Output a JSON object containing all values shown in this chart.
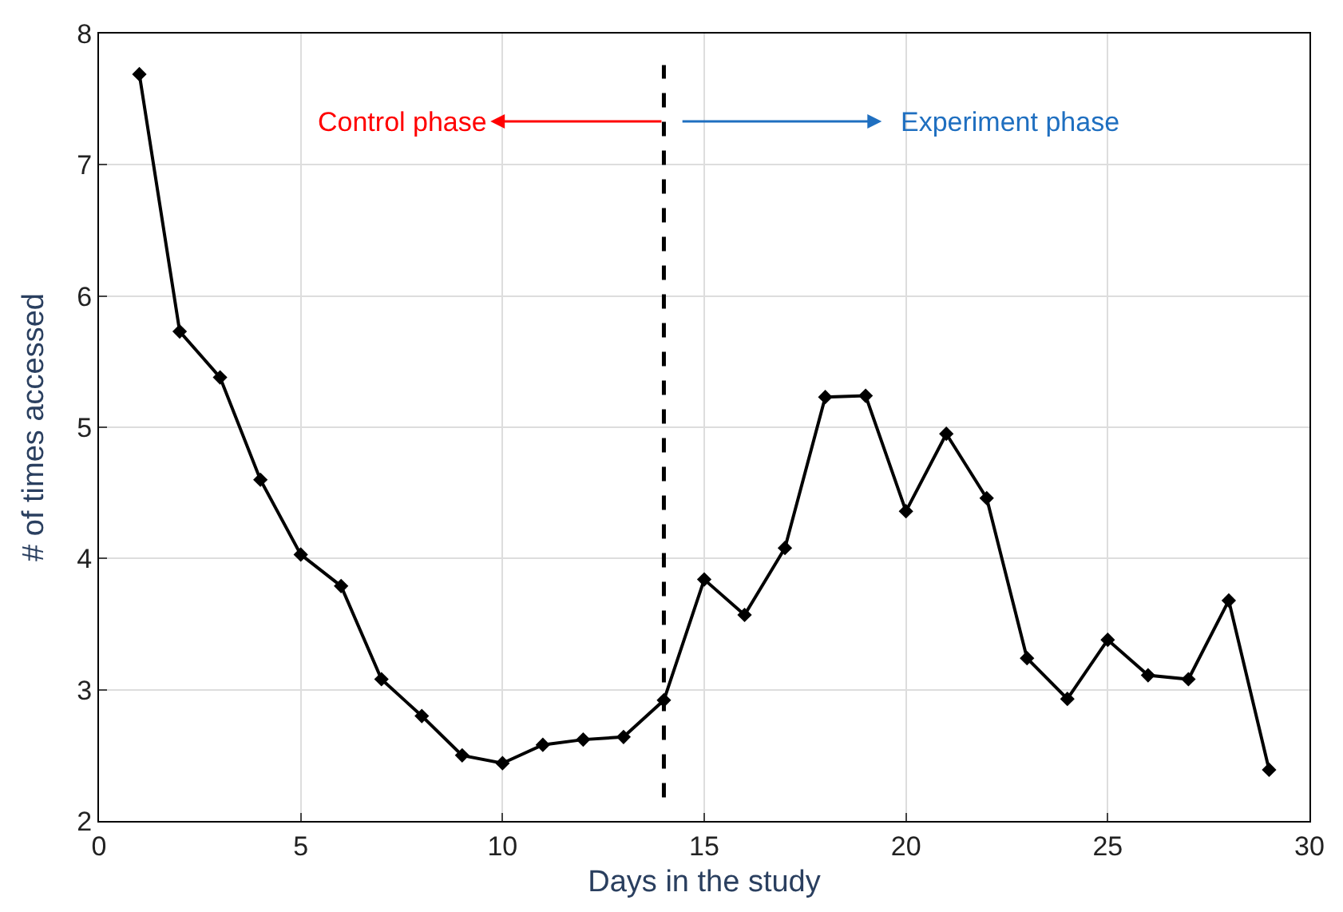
{
  "chart_data": {
    "type": "line",
    "xlabel": "Days in the study",
    "ylabel": "# of times accessed",
    "x": [
      1,
      2,
      3,
      4,
      5,
      6,
      7,
      8,
      9,
      10,
      11,
      12,
      13,
      14,
      15,
      16,
      17,
      18,
      19,
      20,
      21,
      22,
      23,
      24,
      25,
      26,
      27,
      28,
      29
    ],
    "series": [
      {
        "color": "#000000",
        "values": [
          7.69,
          5.73,
          5.38,
          4.6,
          4.03,
          3.79,
          3.08,
          2.8,
          2.5,
          2.44,
          2.58,
          2.62,
          2.64,
          2.92,
          3.84,
          3.57,
          4.08,
          5.23,
          5.24,
          4.36,
          4.95,
          4.46,
          3.24,
          2.93,
          3.38,
          3.11,
          3.08,
          3.68,
          2.39
        ]
      }
    ],
    "xlim": [
      0,
      30
    ],
    "xticks": [
      0,
      5,
      10,
      15,
      20,
      25,
      30
    ],
    "ylim": [
      2,
      8
    ],
    "yticks": [
      2,
      3,
      4,
      5,
      6,
      7,
      8
    ],
    "grid": true,
    "marker": "diamond",
    "line_style": "solid",
    "ref_lines": [
      {
        "axis": "x",
        "value": 14,
        "color": "#000000",
        "line_style": "dashed"
      }
    ],
    "annotations": [
      "Control phase",
      "Experiment phase"
    ]
  }
}
